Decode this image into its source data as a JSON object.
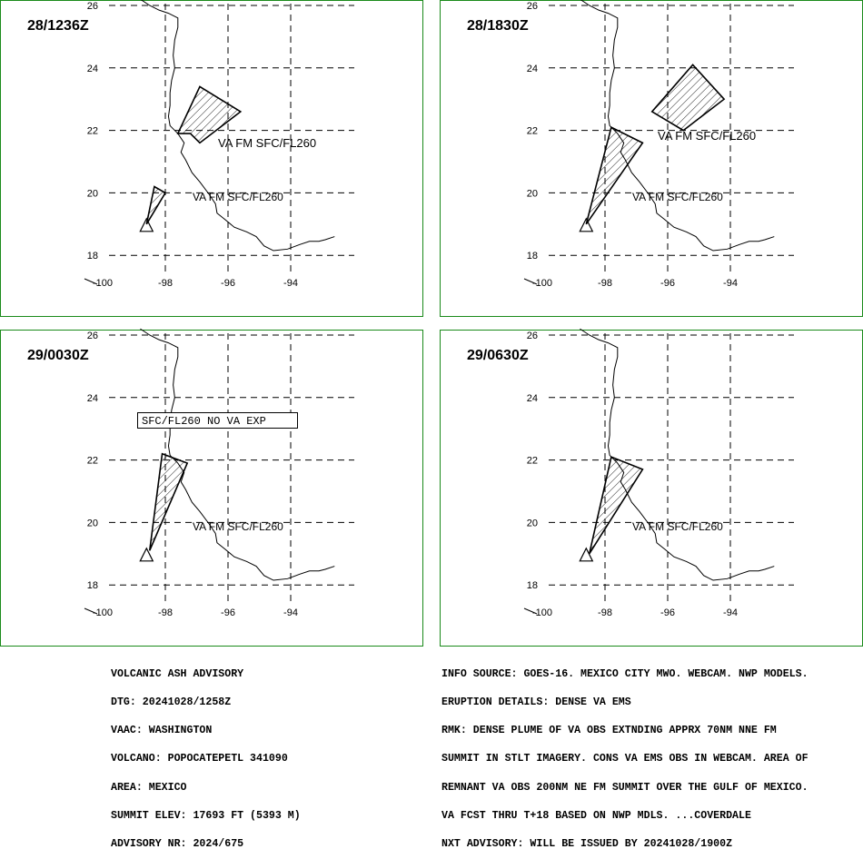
{
  "colors": {
    "frame": "#1a8a1a",
    "ink": "#000000",
    "background": "#ffffff"
  },
  "panels": [
    {
      "time": "28/1236Z",
      "labels": [
        "VA FM SFC/FL260",
        "VA FM SFC/FL260"
      ],
      "box_label": ""
    },
    {
      "time": "28/1830Z",
      "labels": [
        "VA FM SFC/FL260",
        "VA FM SFC/FL260"
      ],
      "box_label": ""
    },
    {
      "time": "29/0030Z",
      "labels": [
        "VA FM SFC/FL260"
      ],
      "box_label": "SFC/FL260 NO VA EXP"
    },
    {
      "time": "29/0630Z",
      "labels": [
        "VA FM SFC/FL260"
      ],
      "box_label": ""
    }
  ],
  "axes": {
    "lat_ticks": [
      "26",
      "24",
      "22",
      "20",
      "18"
    ],
    "lon_ticks": [
      "-100",
      "-98",
      "-96",
      "-94"
    ]
  },
  "map_data": {
    "type": "volcanic ash advisory graphic",
    "lon_range": [
      -101,
      -93
    ],
    "lat_range": [
      17.6,
      26
    ],
    "volcano": {
      "name": "POPOCATEPETL",
      "lon": -98.6,
      "lat": 19.0
    },
    "ash_polygons": [
      [
        [
          [
            -97.6,
            21.9
          ],
          [
            -96.9,
            23.4
          ],
          [
            -95.6,
            22.6
          ],
          [
            -96.9,
            21.6
          ],
          [
            -97.2,
            21.9
          ]
        ],
        [
          [
            -98.6,
            19.0
          ],
          [
            -98.35,
            20.2
          ],
          [
            -98.0,
            20.0
          ]
        ]
      ],
      [
        [
          [
            -96.5,
            22.6
          ],
          [
            -95.2,
            24.1
          ],
          [
            -94.2,
            23.0
          ],
          [
            -95.5,
            22.0
          ]
        ],
        [
          [
            -98.6,
            19.0
          ],
          [
            -97.8,
            22.1
          ],
          [
            -96.8,
            21.6
          ]
        ]
      ],
      [
        [
          [
            -98.5,
            19.1
          ],
          [
            -98.1,
            22.2
          ],
          [
            -97.3,
            21.9
          ]
        ]
      ],
      [
        [
          [
            -98.5,
            19.0
          ],
          [
            -97.8,
            22.1
          ],
          [
            -96.8,
            21.7
          ]
        ]
      ]
    ]
  },
  "footer": {
    "left": [
      "VOLCANIC ASH ADVISORY",
      "DTG: 20241028/1258Z",
      "VAAC: WASHINGTON",
      "VOLCANO: POPOCATEPETL 341090",
      "AREA: MEXICO",
      "SUMMIT ELEV: 17693 FT (5393 M)",
      "ADVISORY NR: 2024/675"
    ],
    "right": [
      "INFO SOURCE: GOES-16. MEXICO CITY MWO. WEBCAM. NWP MODELS.",
      "ERUPTION DETAILS: DENSE VA EMS",
      "RMK: DENSE PLUME OF VA OBS EXTNDING APPRX 70NM NNE FM",
      "SUMMIT IN STLT IMAGERY. CONS VA EMS OBS IN WEBCAM. AREA OF",
      "REMNANT VA OBS 200NM NE FM SUMMIT OVER THE GULF OF MEXICO.",
      "VA FCST THRU T+18 BASED ON NWP MDLS. ...COVERDALE",
      "NXT ADVISORY: WILL BE ISSUED BY 20241028/1900Z"
    ]
  }
}
